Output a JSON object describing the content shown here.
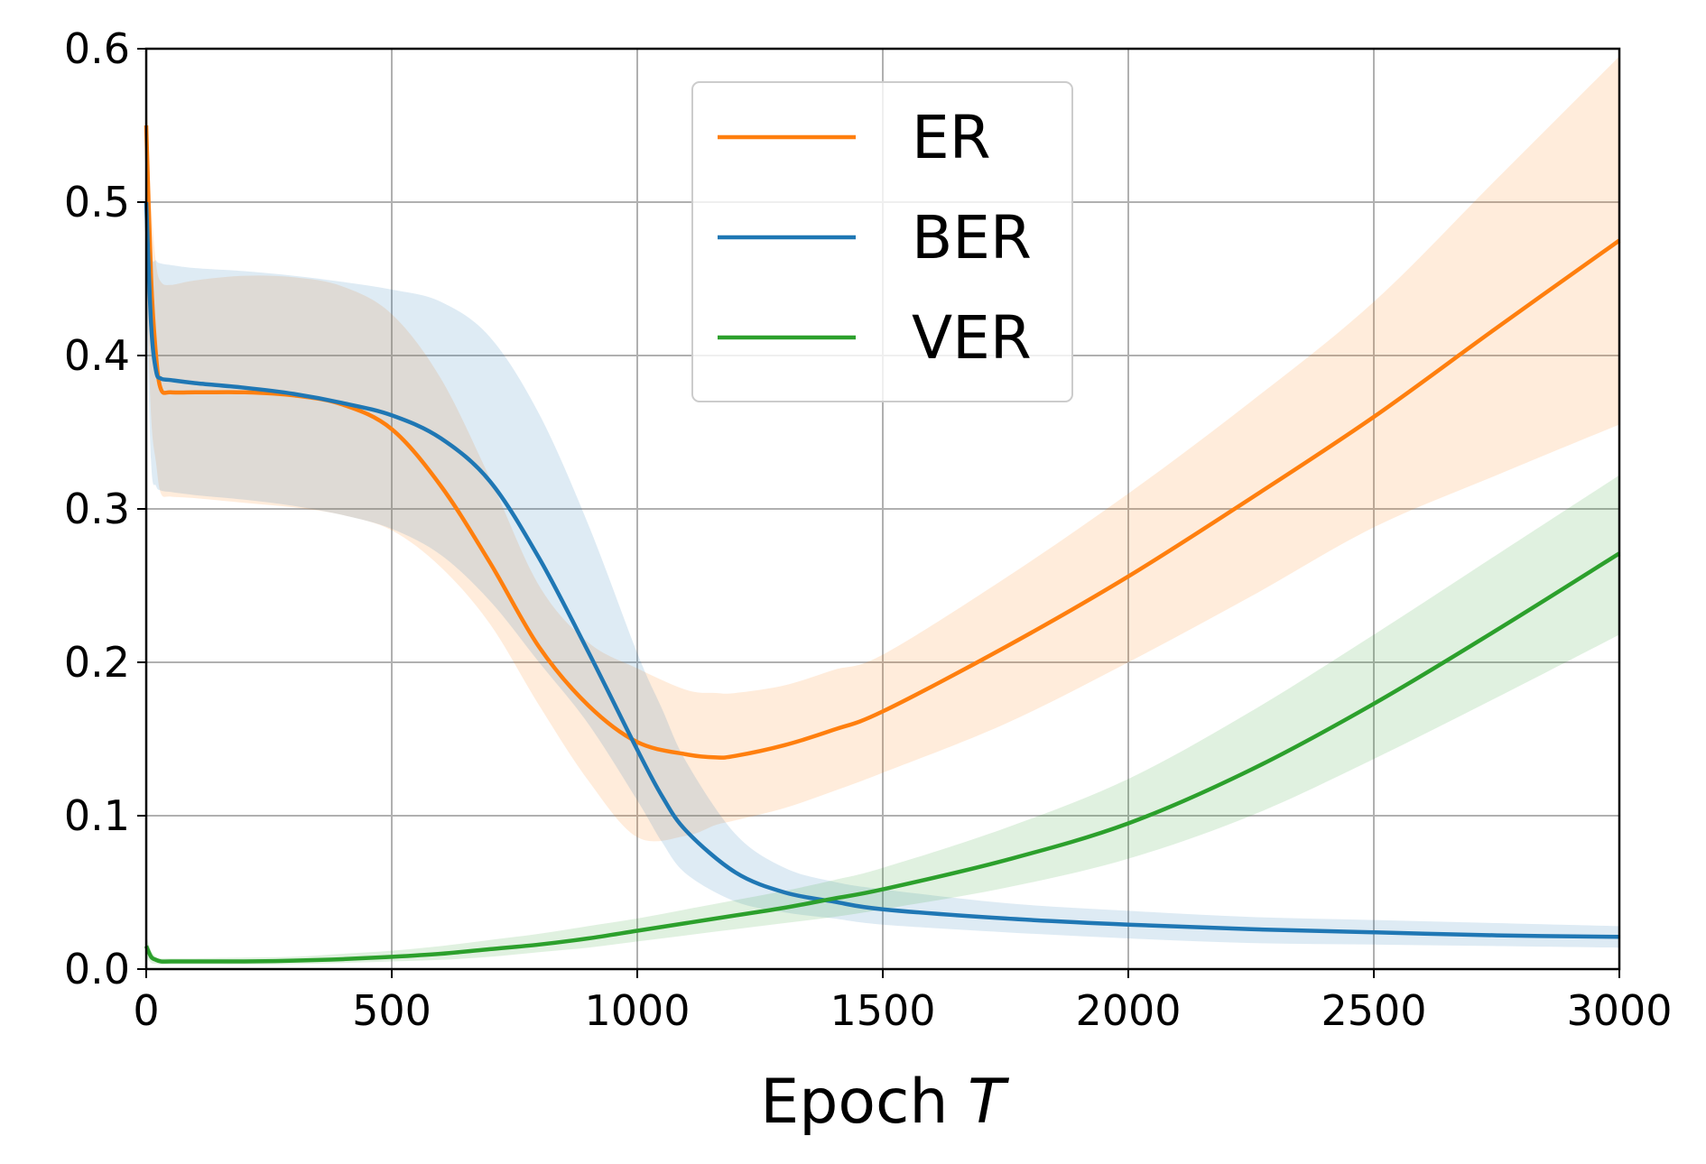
{
  "chart_data": {
    "type": "line",
    "title": "",
    "xlabel": "Epoch",
    "xlabel_italic": "T",
    "ylabel": "",
    "xlim": [
      0,
      3000
    ],
    "ylim": [
      0,
      0.6
    ],
    "xticks": [
      0,
      500,
      1000,
      1500,
      2000,
      2500,
      3000
    ],
    "xtick_labels": [
      "0",
      "500",
      "1000",
      "1500",
      "2000",
      "2500",
      "3000"
    ],
    "yticks": [
      0.0,
      0.1,
      0.2,
      0.3,
      0.4,
      0.5,
      0.6
    ],
    "ytick_labels": [
      "0.0",
      "0.1",
      "0.2",
      "0.3",
      "0.4",
      "0.5",
      "0.6"
    ],
    "grid": true,
    "legend_position": "top-center",
    "series": [
      {
        "name": "ER",
        "color": "#ff7f0e",
        "x": [
          0,
          10,
          20,
          30,
          50,
          100,
          200,
          300,
          400,
          500,
          600,
          700,
          800,
          900,
          1000,
          1100,
          1160,
          1200,
          1300,
          1400,
          1500,
          1750,
          2000,
          2250,
          2500,
          2750,
          3000
        ],
        "y": [
          0.55,
          0.45,
          0.4,
          0.378,
          0.376,
          0.376,
          0.376,
          0.374,
          0.368,
          0.352,
          0.315,
          0.265,
          0.21,
          0.172,
          0.148,
          0.14,
          0.138,
          0.139,
          0.146,
          0.156,
          0.168,
          0.21,
          0.256,
          0.307,
          0.36,
          0.418,
          0.475
        ],
        "lower": [
          0.45,
          0.36,
          0.33,
          0.31,
          0.308,
          0.307,
          0.304,
          0.301,
          0.296,
          0.286,
          0.262,
          0.225,
          0.172,
          0.123,
          0.086,
          0.087,
          0.094,
          0.097,
          0.105,
          0.116,
          0.128,
          0.16,
          0.2,
          0.243,
          0.288,
          0.322,
          0.355
        ],
        "upper": [
          0.58,
          0.5,
          0.46,
          0.448,
          0.446,
          0.449,
          0.452,
          0.451,
          0.445,
          0.427,
          0.385,
          0.32,
          0.25,
          0.213,
          0.196,
          0.182,
          0.18,
          0.18,
          0.185,
          0.195,
          0.205,
          0.255,
          0.31,
          0.37,
          0.435,
          0.515,
          0.595
        ]
      },
      {
        "name": "BER",
        "color": "#1f77b4",
        "x": [
          0,
          10,
          20,
          30,
          50,
          100,
          200,
          300,
          400,
          500,
          600,
          700,
          800,
          900,
          1000,
          1050,
          1100,
          1200,
          1300,
          1400,
          1500,
          1750,
          2000,
          2250,
          2500,
          2750,
          3000
        ],
        "y": [
          0.5,
          0.42,
          0.39,
          0.385,
          0.384,
          0.382,
          0.379,
          0.375,
          0.369,
          0.361,
          0.346,
          0.318,
          0.268,
          0.207,
          0.143,
          0.113,
          0.09,
          0.063,
          0.05,
          0.044,
          0.039,
          0.033,
          0.029,
          0.026,
          0.024,
          0.022,
          0.021
        ],
        "lower": [
          0.44,
          0.33,
          0.315,
          0.312,
          0.311,
          0.309,
          0.306,
          0.302,
          0.296,
          0.287,
          0.27,
          0.24,
          0.2,
          0.16,
          0.11,
          0.083,
          0.062,
          0.044,
          0.037,
          0.033,
          0.029,
          0.024,
          0.02,
          0.017,
          0.016,
          0.015,
          0.014
        ],
        "upper": [
          0.55,
          0.47,
          0.462,
          0.46,
          0.459,
          0.457,
          0.455,
          0.452,
          0.448,
          0.443,
          0.435,
          0.412,
          0.362,
          0.29,
          0.206,
          0.17,
          0.135,
          0.088,
          0.066,
          0.057,
          0.052,
          0.043,
          0.038,
          0.034,
          0.032,
          0.03,
          0.028
        ]
      },
      {
        "name": "VER",
        "color": "#2ca02c",
        "x": [
          0,
          10,
          20,
          30,
          50,
          100,
          200,
          300,
          400,
          500,
          600,
          700,
          800,
          900,
          1000,
          1100,
          1200,
          1300,
          1400,
          1500,
          1750,
          2000,
          2250,
          2500,
          2750,
          3000
        ],
        "y": [
          0.015,
          0.008,
          0.006,
          0.005,
          0.005,
          0.005,
          0.005,
          0.0055,
          0.0065,
          0.008,
          0.01,
          0.013,
          0.016,
          0.02,
          0.025,
          0.03,
          0.035,
          0.04,
          0.046,
          0.052,
          0.071,
          0.095,
          0.13,
          0.173,
          0.221,
          0.271
        ],
        "lower": [
          0.008,
          0.004,
          0.0035,
          0.003,
          0.003,
          0.003,
          0.003,
          0.0033,
          0.004,
          0.005,
          0.006,
          0.008,
          0.011,
          0.014,
          0.018,
          0.022,
          0.026,
          0.03,
          0.034,
          0.039,
          0.053,
          0.072,
          0.1,
          0.137,
          0.177,
          0.218
        ],
        "upper": [
          0.022,
          0.012,
          0.008,
          0.007,
          0.007,
          0.007,
          0.0075,
          0.008,
          0.01,
          0.012,
          0.015,
          0.019,
          0.023,
          0.028,
          0.033,
          0.039,
          0.045,
          0.051,
          0.058,
          0.066,
          0.092,
          0.124,
          0.168,
          0.218,
          0.27,
          0.322
        ]
      }
    ]
  }
}
